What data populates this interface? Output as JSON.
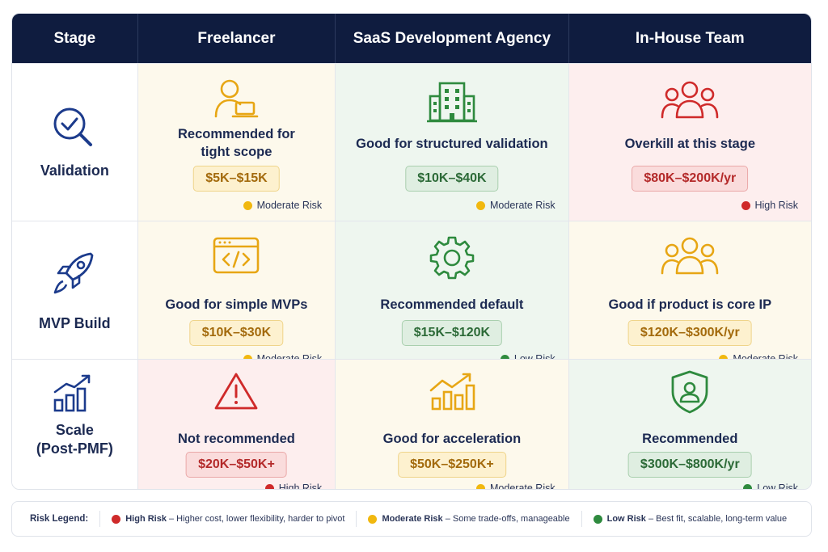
{
  "header": {
    "stage": "Stage",
    "freelancer": "Freelancer",
    "agency": "SaaS Development Agency",
    "inhouse": "In-House Team"
  },
  "rows": [
    {
      "stage": "Validation",
      "stage_icon": "magnifier-check-icon",
      "freelancer": {
        "verdict_line1": "Recommended for",
        "verdict_line2": "tight scope",
        "price": "$5K–$15K",
        "risk": "Moderate Risk",
        "icon": "person-laptop-icon",
        "level": "moderate"
      },
      "agency": {
        "verdict": "Good for structured validation",
        "price": "$10K–$40K",
        "risk": "Moderate Risk",
        "icon": "office-building-icon",
        "level": "moderate"
      },
      "inhouse": {
        "verdict": "Overkill at this stage",
        "price": "$80K–$200K/yr",
        "risk": "High Risk",
        "icon": "team-group-icon",
        "level": "high"
      }
    },
    {
      "stage": "MVP Build",
      "stage_icon": "rocket-icon",
      "freelancer": {
        "verdict": "Good for simple MVPs",
        "price": "$10K–$30K",
        "risk": "Moderate Risk",
        "icon": "code-window-icon",
        "level": "moderate"
      },
      "agency": {
        "verdict": "Recommended default",
        "price": "$15K–$120K",
        "risk": "Low Risk",
        "icon": "gear-icon",
        "level": "low"
      },
      "inhouse": {
        "verdict": "Good if product is core IP",
        "price": "$120K–$300K/yr",
        "risk": "Moderate Risk",
        "icon": "team-group-icon",
        "level": "moderate"
      }
    },
    {
      "stage_line1": "Scale",
      "stage_line2": "(Post-PMF)",
      "stage_icon": "bar-growth-icon",
      "freelancer": {
        "verdict": "Not recommended",
        "price": "$20K–$50K+",
        "risk": "High Risk",
        "icon": "warning-triangle-icon",
        "level": "high"
      },
      "agency": {
        "verdict": "Good for acceleration",
        "price": "$50K–$250K+",
        "risk": "Moderate Risk",
        "icon": "growth-chart-icon",
        "level": "moderate"
      },
      "inhouse": {
        "verdict": "Recommended",
        "price": "$300K–$800K/yr",
        "risk": "Low Risk",
        "icon": "shield-person-icon",
        "level": "low"
      }
    }
  ],
  "legend": {
    "title": "Risk Legend:",
    "high_label": "High Risk",
    "high_desc": " – Higher cost, lower flexibility, harder to pivot",
    "moderate_label": "Moderate Risk",
    "moderate_desc": " – Some trade-offs, manageable",
    "low_label": "Low Risk",
    "low_desc": " – Best fit, scalable, long-term value"
  },
  "colors": {
    "header_bg": "#0f1c3f",
    "navy": "#1c2a52",
    "high": "#cf2a2a",
    "moderate": "#f1b80f",
    "low": "#2e8a3e"
  }
}
